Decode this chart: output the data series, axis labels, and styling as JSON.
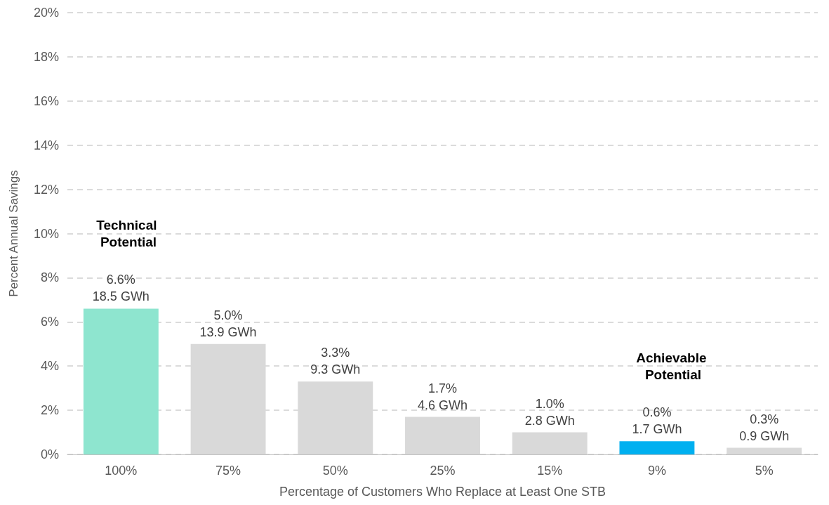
{
  "chart_data": {
    "type": "bar",
    "xlabel": "Percentage of Customers Who Replace at Least One STB",
    "ylabel": "Percent Annual Savings",
    "categories": [
      "100%",
      "75%",
      "50%",
      "25%",
      "15%",
      "9%",
      "5%"
    ],
    "values": [
      6.6,
      5.0,
      3.3,
      1.7,
      1.0,
      0.6,
      0.3
    ],
    "colors": [
      "#8ee5cf",
      "#d9d9d9",
      "#d9d9d9",
      "#d9d9d9",
      "#d9d9d9",
      "#00b0f0",
      "#d9d9d9"
    ],
    "value_labels": [
      "6.6%\n18.5 GWh",
      "5.0%\n13.9 GWh",
      "3.3%\n9.3 GWh",
      "1.7%\n4.6 GWh",
      "1.0%\n2.8 GWh",
      "0.6%\n1.7 GWh",
      "0.3%\n0.9 GWh"
    ],
    "ylim": [
      0,
      20
    ],
    "yticks": [
      {
        "value": 0,
        "label": "0%"
      },
      {
        "value": 2,
        "label": "2%"
      },
      {
        "value": 4,
        "label": "4%"
      },
      {
        "value": 6,
        "label": "6%"
      },
      {
        "value": 8,
        "label": "8%"
      },
      {
        "value": 10,
        "label": "10%"
      },
      {
        "value": 12,
        "label": "12%"
      },
      {
        "value": 14,
        "label": "14%"
      },
      {
        "value": 16,
        "label": "16%"
      },
      {
        "value": 18,
        "label": "18%"
      },
      {
        "value": 20,
        "label": "20%"
      }
    ],
    "annotations": [
      "Technical Potential",
      "Achievable Potential"
    ],
    "grid": "y"
  }
}
